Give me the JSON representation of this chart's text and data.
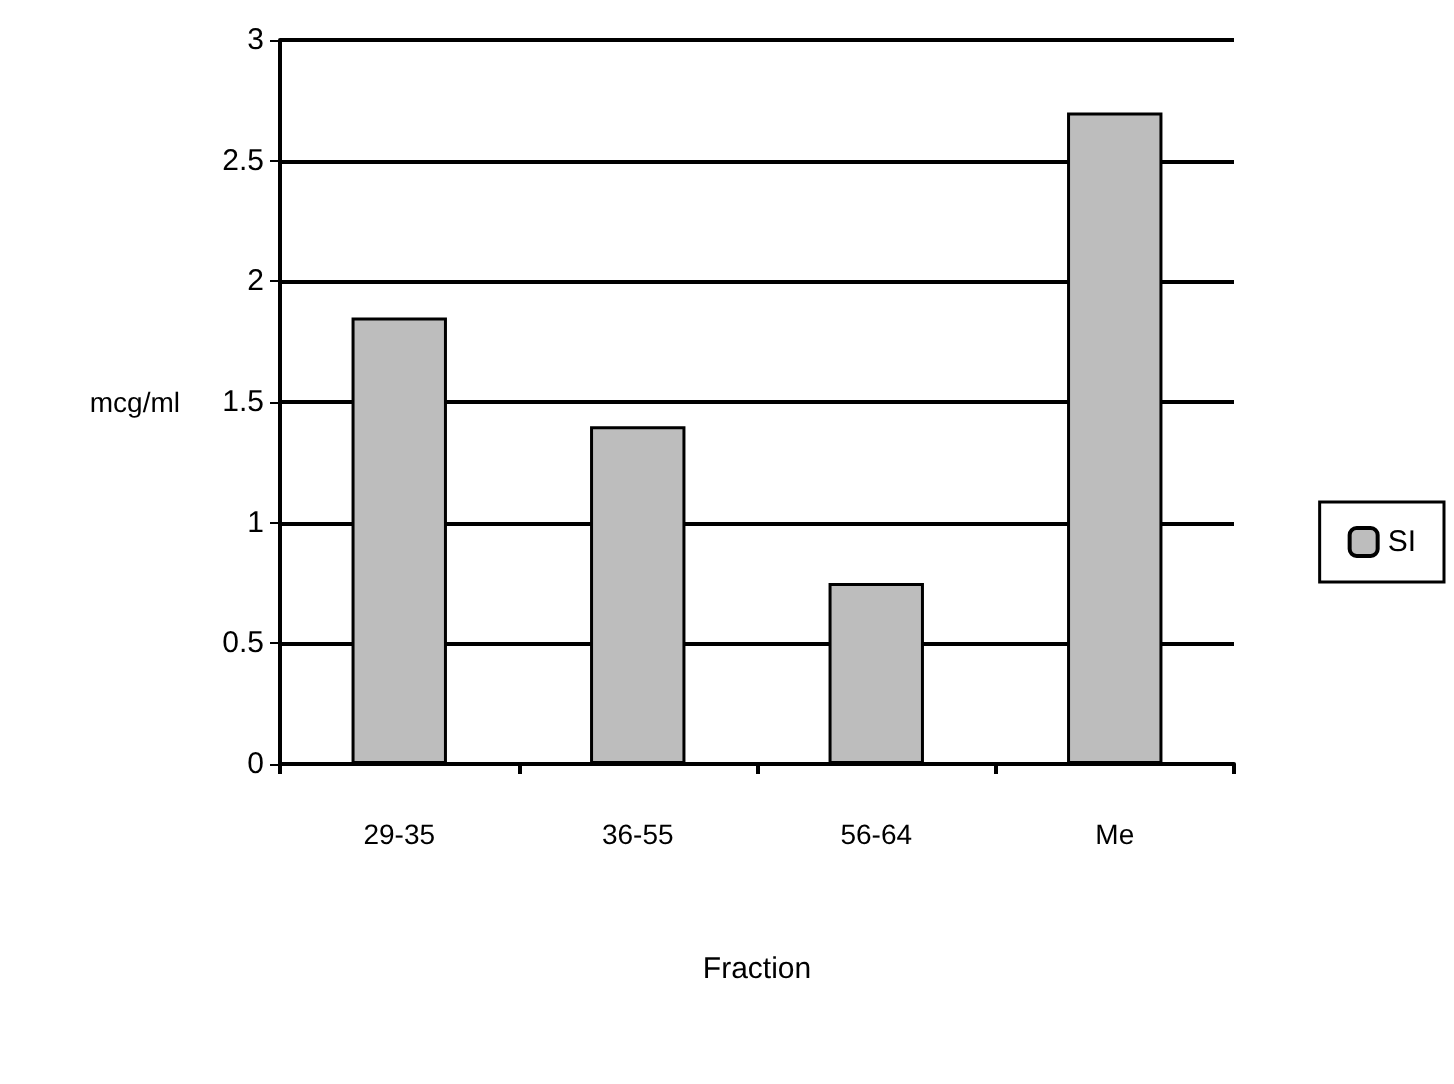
{
  "chart_data": {
    "type": "bar",
    "xlabel": "Fraction",
    "ylabel": "mcg/ml",
    "categories": [
      "29-35",
      "36-55",
      "56-64",
      "Me"
    ],
    "series": [
      {
        "name": "SI",
        "color": "#bdbdbd",
        "values": [
          1.85,
          1.4,
          0.75,
          2.7
        ]
      }
    ],
    "ylim": [
      0,
      3
    ],
    "yticks": [
      0,
      0.5,
      1,
      1.5,
      2,
      2.5,
      3
    ],
    "grid": "y",
    "legend": "right"
  }
}
